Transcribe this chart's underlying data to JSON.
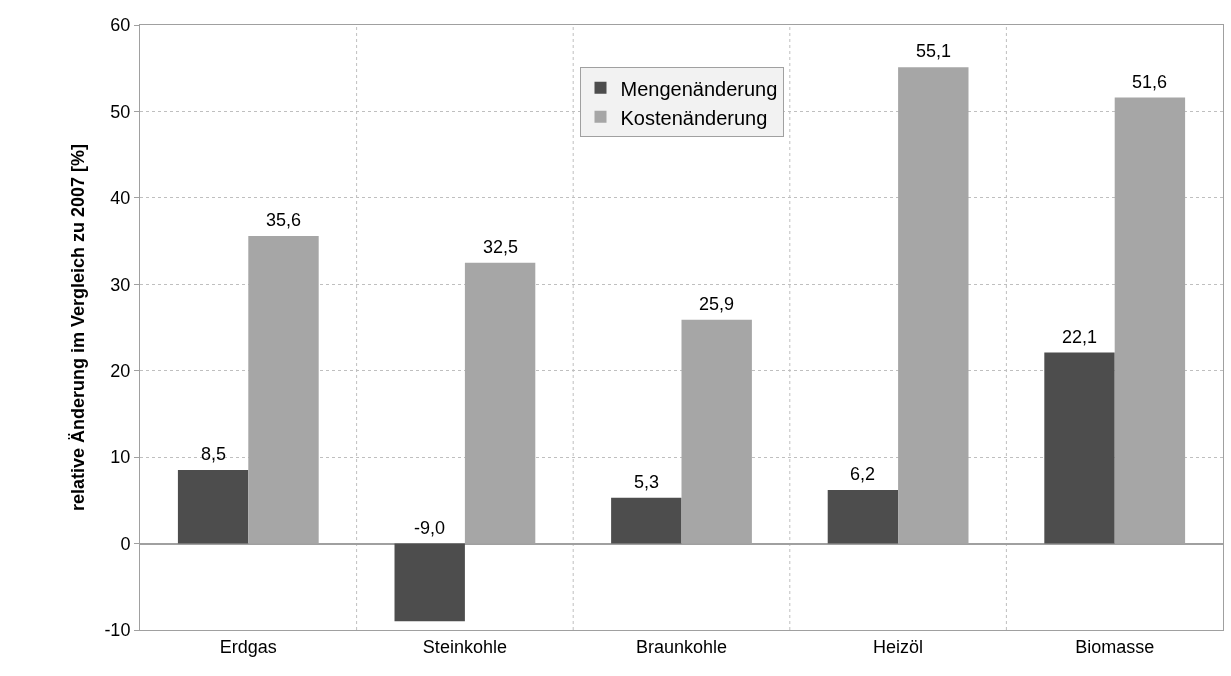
{
  "chart_data": {
    "type": "bar",
    "ylabel": "relative Änderung im Vergleich zu 2007 [%]",
    "categories": [
      "Erdgas",
      "Steinkohle",
      "Braunkohle",
      "Heizöl",
      "Biomasse"
    ],
    "series": [
      {
        "name": "Mengenänderung",
        "color": "#4d4d4d",
        "values": [
          8.5,
          -9.0,
          5.3,
          6.2,
          22.1
        ],
        "value_labels": [
          "8,5",
          "-9,0",
          "5,3",
          "6,2",
          "22,1"
        ]
      },
      {
        "name": "Kostenänderung",
        "color": "#a6a6a6",
        "values": [
          35.6,
          32.5,
          25.9,
          55.1,
          51.6
        ],
        "value_labels": [
          "35,6",
          "32,5",
          "25,9",
          "55,1",
          "51,6"
        ]
      }
    ],
    "ylim": [
      -10,
      60
    ],
    "yticks": [
      -10,
      0,
      10,
      20,
      30,
      40,
      50,
      60
    ],
    "grid": true,
    "legend": "top"
  }
}
